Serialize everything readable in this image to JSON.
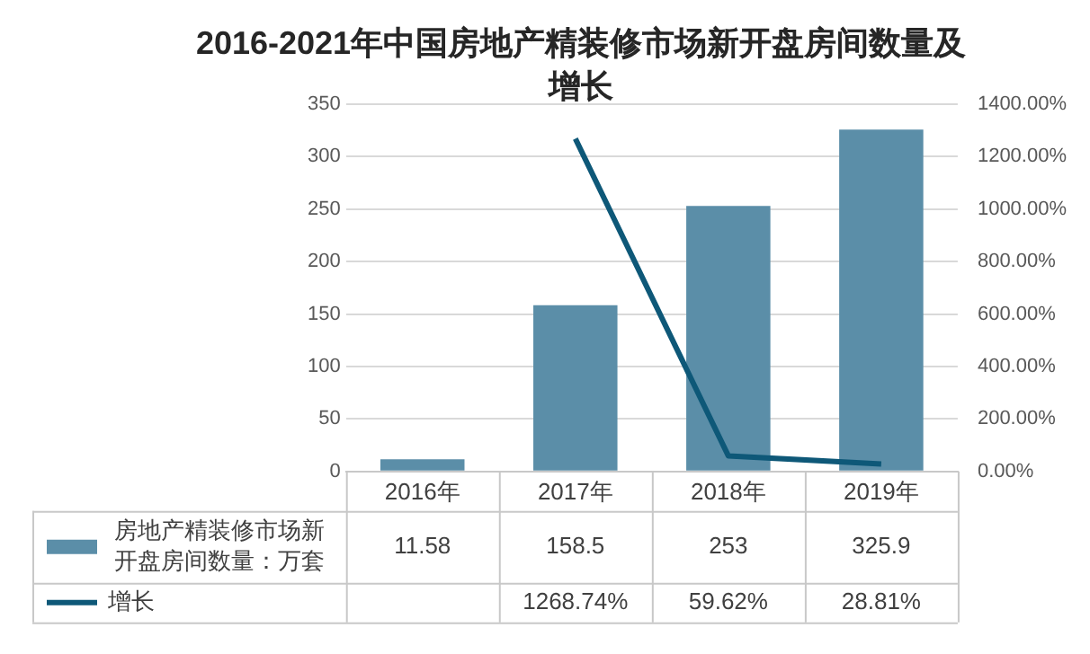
{
  "chart_data": {
    "type": "bar",
    "title": "2016-2021年中国房地产精装修市场新开盘房间数量及增长",
    "categories": [
      "2016年",
      "2017年",
      "2018年",
      "2019年"
    ],
    "series": [
      {
        "name": "房地产精装修市场新开盘房间数量：万套",
        "color": "#5b8ea8",
        "values": [
          11.58,
          158.5,
          253,
          325.9
        ],
        "value_labels": [
          "11.58",
          "158.5",
          "253",
          "325.9"
        ]
      },
      {
        "name": "增长",
        "type": "line",
        "axis": "y2",
        "color": "#0e5878",
        "values": [
          null,
          1268.74,
          59.62,
          28.81
        ],
        "value_labels": [
          null,
          "1268.74%",
          "59.62%",
          "28.81%"
        ]
      }
    ],
    "ylim": [
      0,
      350
    ],
    "yticks": [
      0,
      50,
      100,
      150,
      200,
      250,
      300,
      350
    ],
    "y2lim": [
      0,
      1400
    ],
    "y2ticks": [
      {
        "value": 0,
        "label": "0.00%"
      },
      {
        "value": 200,
        "label": "200.00%"
      },
      {
        "value": 400,
        "label": "400.00%"
      },
      {
        "value": 600,
        "label": "600.00%"
      },
      {
        "value": 800,
        "label": "800.00%"
      },
      {
        "value": 1000,
        "label": "1000.00%"
      },
      {
        "value": 1200,
        "label": "1200.00%"
      },
      {
        "value": 1400,
        "label": "1400.00%"
      }
    ],
    "grid": "y",
    "legend": "bottom",
    "marker": "none"
  }
}
